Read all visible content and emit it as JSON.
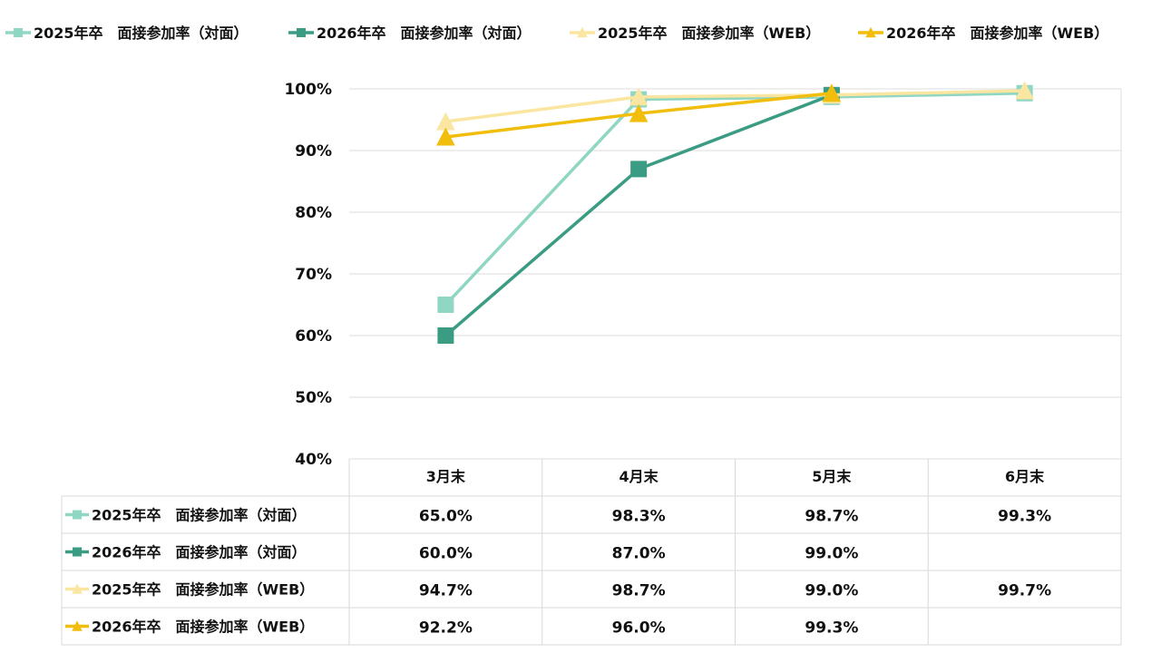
{
  "chart_data": {
    "type": "line",
    "categories": [
      "3月末",
      "4月末",
      "5月末",
      "6月末"
    ],
    "ylim": [
      0.4,
      1.0
    ],
    "yticks": [
      "40%",
      "50%",
      "60%",
      "70%",
      "80%",
      "90%",
      "100%"
    ],
    "grid": true,
    "legend_position": "top",
    "series": [
      {
        "name": "2025年卒　面接参加率（対面）",
        "marker": "square",
        "color": "#8fd6c3",
        "values": [
          0.65,
          0.983,
          0.987,
          0.993
        ],
        "labels": [
          "65.0%",
          "98.3%",
          "98.7%",
          "99.3%"
        ]
      },
      {
        "name": "2026年卒　面接参加率（対面）",
        "marker": "square",
        "color": "#3a9c82",
        "values": [
          0.6,
          0.87,
          0.99,
          null
        ],
        "labels": [
          "60.0%",
          "87.0%",
          "99.0%",
          ""
        ]
      },
      {
        "name": "2025年卒　面接参加率（WEB）",
        "marker": "triangle",
        "color": "#fae6a0",
        "values": [
          0.947,
          0.987,
          0.99,
          0.997
        ],
        "labels": [
          "94.7%",
          "98.7%",
          "99.0%",
          "99.7%"
        ]
      },
      {
        "name": "2026年卒　面接参加率（WEB）",
        "marker": "triangle",
        "color": "#f2be0d",
        "values": [
          0.922,
          0.96,
          0.993,
          null
        ],
        "labels": [
          "92.2%",
          "96.0%",
          "99.3%",
          ""
        ]
      }
    ]
  }
}
